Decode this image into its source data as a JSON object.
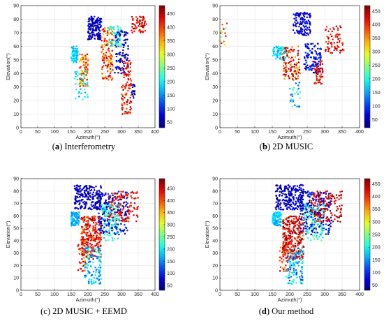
{
  "chart_data": [
    {
      "type": "scatter",
      "caption": {
        "letter": "a",
        "text": " Interferometry"
      },
      "xlabel": "Azimuth(°)",
      "ylabel": "Elevation(°)",
      "xlim": [
        0,
        400
      ],
      "ylim": [
        0,
        90
      ],
      "xticks": [
        0,
        50,
        100,
        150,
        200,
        250,
        300,
        350,
        400
      ],
      "yticks": [
        0,
        10,
        20,
        30,
        40,
        50,
        60,
        70,
        80,
        90
      ],
      "colorbar": {
        "range": [
          30,
          480
        ],
        "ticks": [
          50,
          100,
          150,
          200,
          250,
          300,
          350,
          400,
          450
        ]
      },
      "clusters": [
        {
          "x": [
            150,
            170
          ],
          "y": [
            48,
            60
          ],
          "c": [
            150,
            200
          ],
          "n": 70
        },
        {
          "x": [
            175,
            200
          ],
          "y": [
            30,
            55
          ],
          "c": [
            300,
            450
          ],
          "n": 90
        },
        {
          "x": [
            200,
            240
          ],
          "y": [
            65,
            82
          ],
          "c": [
            30,
            90
          ],
          "n": 140
        },
        {
          "x": [
            240,
            275
          ],
          "y": [
            35,
            75
          ],
          "c": [
            330,
            460
          ],
          "n": 140
        },
        {
          "x": [
            280,
            320
          ],
          "y": [
            40,
            72
          ],
          "c": [
            30,
            110
          ],
          "n": 110
        },
        {
          "x": [
            300,
            330
          ],
          "y": [
            10,
            50
          ],
          "c": [
            380,
            470
          ],
          "n": 100
        },
        {
          "x": [
            330,
            375
          ],
          "y": [
            70,
            82
          ],
          "c": [
            400,
            470
          ],
          "n": 60
        },
        {
          "x": [
            260,
            300
          ],
          "y": [
            60,
            75
          ],
          "c": [
            180,
            260
          ],
          "n": 50
        },
        {
          "x": [
            160,
            200
          ],
          "y": [
            20,
            42
          ],
          "c": [
            150,
            230
          ],
          "n": 40
        },
        {
          "x": [
            330,
            340
          ],
          "y": [
            22,
            32
          ],
          "c": [
            30,
            80
          ],
          "n": 20
        }
      ]
    },
    {
      "type": "scatter",
      "caption": {
        "letter": "b",
        "text": " 2D MUSIC"
      },
      "xlabel": "Azimuth(°)",
      "ylabel": "Elevation(°)",
      "xlim": [
        0,
        400
      ],
      "ylim": [
        0,
        90
      ],
      "xticks": [
        0,
        50,
        100,
        150,
        200,
        250,
        300,
        350,
        400
      ],
      "yticks": [
        0,
        10,
        20,
        30,
        40,
        50,
        60,
        70,
        80,
        90
      ],
      "colorbar": {
        "range": [
          20,
          470
        ],
        "ticks": [
          50,
          100,
          150,
          200,
          250,
          300,
          350,
          400,
          450
        ]
      },
      "clusters": [
        {
          "x": [
            150,
            190
          ],
          "y": [
            50,
            60
          ],
          "c": [
            140,
            200
          ],
          "n": 70
        },
        {
          "x": [
            210,
            260
          ],
          "y": [
            68,
            85
          ],
          "c": [
            30,
            90
          ],
          "n": 120
        },
        {
          "x": [
            180,
            230
          ],
          "y": [
            35,
            60
          ],
          "c": [
            330,
            470
          ],
          "n": 110
        },
        {
          "x": [
            240,
            290
          ],
          "y": [
            40,
            62
          ],
          "c": [
            30,
            110
          ],
          "n": 110
        },
        {
          "x": [
            300,
            355
          ],
          "y": [
            55,
            75
          ],
          "c": [
            380,
            470
          ],
          "n": 70
        },
        {
          "x": [
            270,
            295
          ],
          "y": [
            32,
            50
          ],
          "c": [
            380,
            460
          ],
          "n": 50
        },
        {
          "x": [
            200,
            230
          ],
          "y": [
            15,
            35
          ],
          "c": [
            100,
            230
          ],
          "n": 30
        },
        {
          "x": [
            0,
            20
          ],
          "y": [
            60,
            78
          ],
          "c": [
            200,
            450
          ],
          "n": 15
        }
      ]
    },
    {
      "type": "scatter",
      "caption": {
        "letter": "",
        "text": "(c) 2D MUSIC + EEMD"
      },
      "xlabel": "Azimuth(°)",
      "ylabel": "Elevation(°)",
      "xlim": [
        0,
        400
      ],
      "ylim": [
        0,
        90
      ],
      "xticks": [
        0,
        50,
        100,
        150,
        200,
        250,
        300,
        350,
        400
      ],
      "yticks": [
        0,
        10,
        20,
        30,
        40,
        50,
        60,
        70,
        80,
        90
      ],
      "colorbar": {
        "range": [
          30,
          490
        ],
        "ticks": [
          50,
          100,
          150,
          200,
          250,
          300,
          350,
          400,
          450
        ]
      },
      "clusters": [
        {
          "x": [
            150,
            175
          ],
          "y": [
            52,
            63
          ],
          "c": [
            140,
            200
          ],
          "n": 90
        },
        {
          "x": [
            160,
            240
          ],
          "y": [
            65,
            85
          ],
          "c": [
            30,
            90
          ],
          "n": 200
        },
        {
          "x": [
            180,
            240
          ],
          "y": [
            25,
            60
          ],
          "c": [
            380,
            480
          ],
          "n": 260
        },
        {
          "x": [
            190,
            240
          ],
          "y": [
            5,
            35
          ],
          "c": [
            120,
            230
          ],
          "n": 120
        },
        {
          "x": [
            230,
            320
          ],
          "y": [
            45,
            80
          ],
          "c": [
            30,
            120
          ],
          "n": 200
        },
        {
          "x": [
            260,
            350
          ],
          "y": [
            55,
            80
          ],
          "c": [
            400,
            480
          ],
          "n": 130
        },
        {
          "x": [
            240,
            300
          ],
          "y": [
            40,
            70
          ],
          "c": [
            160,
            260
          ],
          "n": 90
        },
        {
          "x": [
            170,
            200
          ],
          "y": [
            15,
            40
          ],
          "c": [
            350,
            470
          ],
          "n": 40
        }
      ]
    },
    {
      "type": "scatter",
      "caption": {
        "letter": "d",
        "text": " Our method"
      },
      "xlabel": "Azimuth(°)",
      "ylabel": "Elevation(°)",
      "xlim": [
        0,
        400
      ],
      "ylim": [
        0,
        90
      ],
      "xticks": [
        0,
        50,
        100,
        150,
        200,
        250,
        300,
        350,
        400
      ],
      "yticks": [
        0,
        10,
        20,
        30,
        40,
        50,
        60,
        70,
        80,
        90
      ],
      "colorbar": {
        "range": [
          30,
          470
        ],
        "ticks": [
          50,
          100,
          150,
          200,
          250,
          300,
          350,
          400,
          450
        ]
      },
      "clusters": [
        {
          "x": [
            150,
            175
          ],
          "y": [
            52,
            63
          ],
          "c": [
            140,
            200
          ],
          "n": 90
        },
        {
          "x": [
            160,
            240
          ],
          "y": [
            65,
            85
          ],
          "c": [
            30,
            90
          ],
          "n": 220
        },
        {
          "x": [
            180,
            240
          ],
          "y": [
            25,
            60
          ],
          "c": [
            380,
            470
          ],
          "n": 280
        },
        {
          "x": [
            190,
            240
          ],
          "y": [
            5,
            35
          ],
          "c": [
            100,
            230
          ],
          "n": 130
        },
        {
          "x": [
            230,
            320
          ],
          "y": [
            45,
            80
          ],
          "c": [
            30,
            120
          ],
          "n": 220
        },
        {
          "x": [
            260,
            350
          ],
          "y": [
            55,
            80
          ],
          "c": [
            400,
            470
          ],
          "n": 150
        },
        {
          "x": [
            240,
            300
          ],
          "y": [
            40,
            70
          ],
          "c": [
            160,
            260
          ],
          "n": 90
        },
        {
          "x": [
            170,
            200
          ],
          "y": [
            15,
            40
          ],
          "c": [
            350,
            460
          ],
          "n": 40
        }
      ]
    }
  ]
}
